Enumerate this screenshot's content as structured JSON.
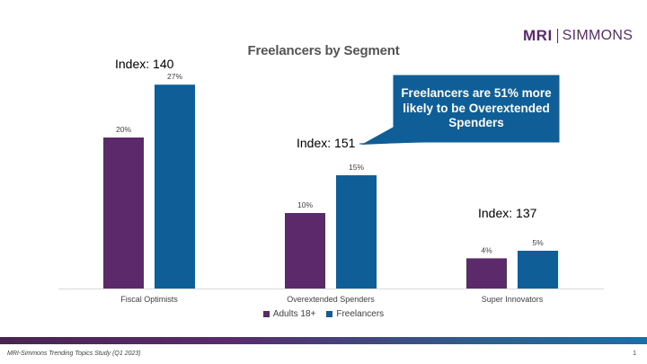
{
  "header": {
    "title": "Freelancers by Segment",
    "logo_primary": "MRI",
    "logo_secondary": "SIMMONS",
    "brand_color": "#5b2a6e"
  },
  "chart_data": {
    "type": "bar",
    "title": "Freelancers by Segment",
    "categories": [
      "Fiscal Optimists",
      "Overextended Spenders",
      "Super Innovators"
    ],
    "series": [
      {
        "name": "Adults 18+",
        "values": [
          20,
          10,
          4
        ],
        "labels": [
          "20%",
          "10%",
          "4%"
        ],
        "color": "#5c2a6a"
      },
      {
        "name": "Freelancers",
        "values": [
          27,
          15,
          5
        ],
        "labels": [
          "27%",
          "15%",
          "5%"
        ],
        "color": "#0f5e97"
      }
    ],
    "ylim": [
      0,
      30
    ],
    "grid": false,
    "legend": "bottom",
    "index_labels": [
      "Index: 140",
      "Index: 151",
      "Index: 137"
    ],
    "callout": {
      "text": "Freelancers are 51% more likely to be Overextended Spenders",
      "color": "#0f5e97"
    }
  },
  "footer": {
    "source": "MRI-Simmons Trending Topics Study (Q1 2023)",
    "page_number": "1"
  }
}
